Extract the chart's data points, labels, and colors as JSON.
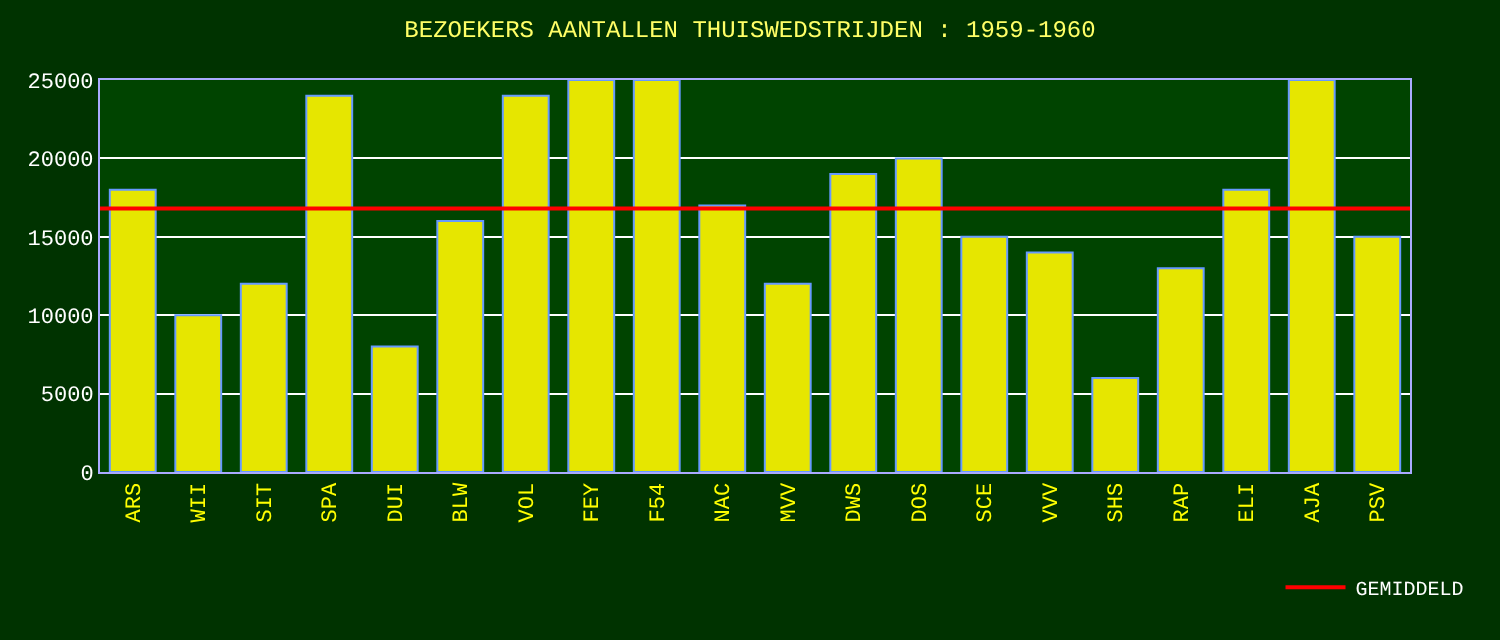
{
  "chart_data": {
    "type": "bar",
    "title": "BEZOEKERS AANTALLEN THUISWEDSTRIJDEN : 1959-1960",
    "categories": [
      "ARS",
      "WII",
      "SIT",
      "SPA",
      "DUI",
      "BLW",
      "VOL",
      "FEY",
      "F54",
      "NAC",
      "MVV",
      "DWS",
      "DOS",
      "SCE",
      "VVV",
      "SHS",
      "RAP",
      "ELI",
      "AJA",
      "PSV"
    ],
    "values": [
      18000,
      10000,
      12000,
      24000,
      8000,
      16000,
      24000,
      25000,
      25000,
      17000,
      12000,
      19000,
      20000,
      15000,
      14000,
      6000,
      13000,
      18000,
      25000,
      15000
    ],
    "color": "#e6e600",
    "ylim": [
      0,
      25000
    ],
    "yticks": [
      0,
      5000,
      10000,
      15000,
      20000,
      25000
    ],
    "grid": "y",
    "ref_lines": [
      {
        "axis": "y",
        "value": 16800,
        "label": "GEMIDDELD",
        "color": "#ff0000"
      }
    ],
    "legend": "bottom right"
  }
}
